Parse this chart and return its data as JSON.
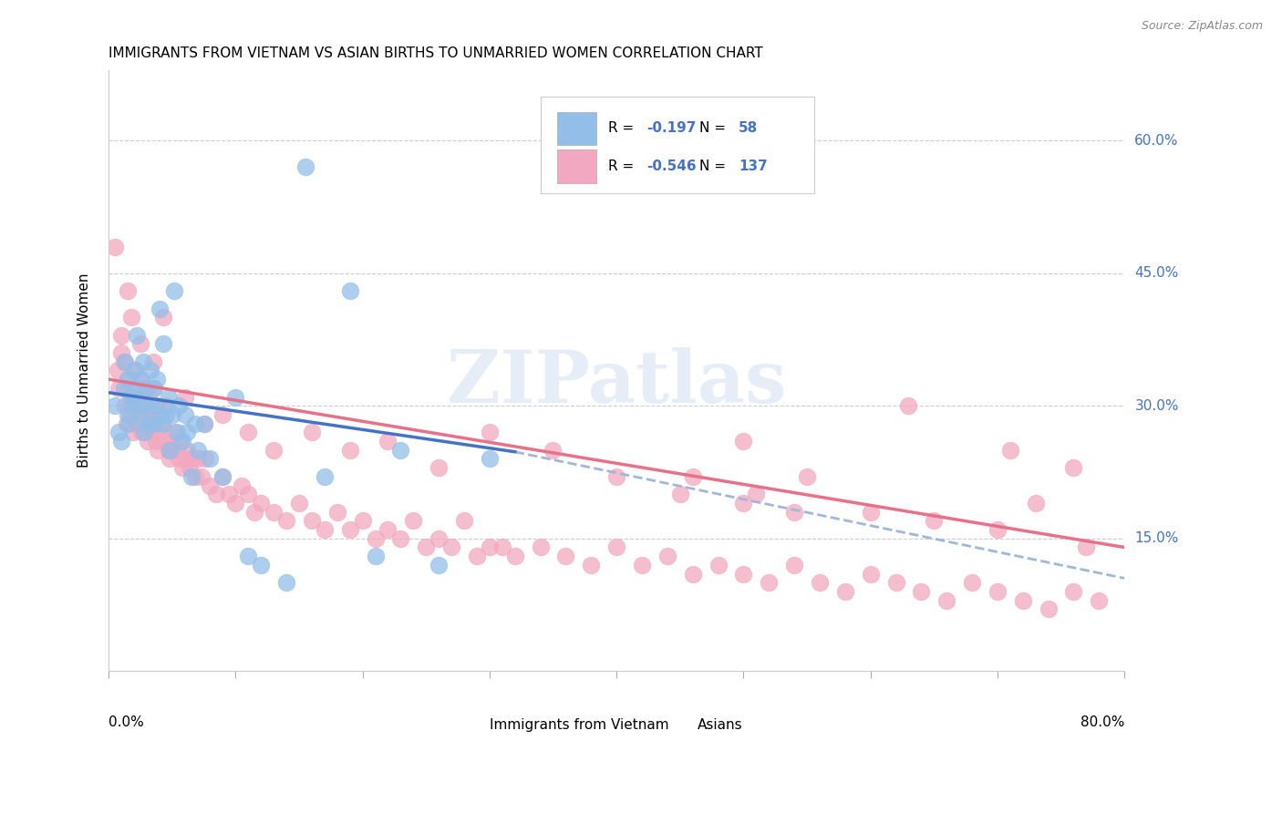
{
  "title": "IMMIGRANTS FROM VIETNAM VS ASIAN BIRTHS TO UNMARRIED WOMEN CORRELATION CHART",
  "source": "Source: ZipAtlas.com",
  "ylabel": "Births to Unmarried Women",
  "ytick_vals": [
    0.15,
    0.3,
    0.45,
    0.6
  ],
  "ytick_labels": [
    "15.0%",
    "30.0%",
    "45.0%",
    "60.0%"
  ],
  "xlim": [
    0.0,
    0.8
  ],
  "ylim": [
    0.0,
    0.68
  ],
  "legend_label1": "Immigrants from Vietnam",
  "legend_label2": "Asians",
  "legend_R1_val": "-0.197",
  "legend_N1_val": "58",
  "legend_R2_val": "-0.546",
  "legend_N2_val": "137",
  "color_blue": "#92BEE8",
  "color_pink": "#F2A8C0",
  "color_blue_line": "#4472C4",
  "color_pink_line": "#E8718A",
  "color_dash": "#A0B8D8",
  "watermark_text": "ZIPatlas",
  "background_color": "#FFFFFF",
  "blue_scatter_x": [
    0.005,
    0.008,
    0.01,
    0.012,
    0.013,
    0.015,
    0.015,
    0.016,
    0.017,
    0.018,
    0.02,
    0.02,
    0.022,
    0.023,
    0.025,
    0.025,
    0.026,
    0.027,
    0.028,
    0.03,
    0.03,
    0.032,
    0.033,
    0.035,
    0.036,
    0.037,
    0.038,
    0.04,
    0.04,
    0.042,
    0.043,
    0.045,
    0.047,
    0.048,
    0.05,
    0.052,
    0.054,
    0.055,
    0.058,
    0.06,
    0.062,
    0.065,
    0.068,
    0.07,
    0.075,
    0.08,
    0.09,
    0.1,
    0.11,
    0.12,
    0.14,
    0.155,
    0.17,
    0.19,
    0.21,
    0.23,
    0.26,
    0.3
  ],
  "blue_scatter_y": [
    0.3,
    0.27,
    0.26,
    0.32,
    0.35,
    0.29,
    0.33,
    0.28,
    0.31,
    0.3,
    0.31,
    0.34,
    0.38,
    0.32,
    0.29,
    0.33,
    0.3,
    0.35,
    0.27,
    0.28,
    0.32,
    0.3,
    0.34,
    0.28,
    0.32,
    0.3,
    0.33,
    0.41,
    0.29,
    0.28,
    0.37,
    0.29,
    0.31,
    0.25,
    0.29,
    0.43,
    0.27,
    0.3,
    0.26,
    0.29,
    0.27,
    0.22,
    0.28,
    0.25,
    0.28,
    0.24,
    0.22,
    0.31,
    0.13,
    0.12,
    0.1,
    0.57,
    0.22,
    0.43,
    0.13,
    0.25,
    0.12,
    0.24
  ],
  "pink_scatter_x": [
    0.005,
    0.007,
    0.008,
    0.01,
    0.012,
    0.013,
    0.014,
    0.015,
    0.016,
    0.017,
    0.018,
    0.019,
    0.02,
    0.021,
    0.022,
    0.023,
    0.024,
    0.025,
    0.026,
    0.027,
    0.028,
    0.029,
    0.03,
    0.031,
    0.032,
    0.033,
    0.034,
    0.035,
    0.036,
    0.037,
    0.038,
    0.039,
    0.04,
    0.042,
    0.044,
    0.045,
    0.047,
    0.048,
    0.05,
    0.052,
    0.054,
    0.055,
    0.056,
    0.058,
    0.06,
    0.062,
    0.064,
    0.066,
    0.068,
    0.07,
    0.073,
    0.076,
    0.08,
    0.085,
    0.09,
    0.095,
    0.1,
    0.105,
    0.11,
    0.115,
    0.12,
    0.13,
    0.14,
    0.15,
    0.16,
    0.17,
    0.18,
    0.19,
    0.2,
    0.21,
    0.22,
    0.23,
    0.24,
    0.25,
    0.26,
    0.27,
    0.28,
    0.29,
    0.3,
    0.31,
    0.32,
    0.34,
    0.36,
    0.38,
    0.4,
    0.42,
    0.44,
    0.46,
    0.48,
    0.5,
    0.52,
    0.54,
    0.56,
    0.58,
    0.6,
    0.62,
    0.64,
    0.66,
    0.68,
    0.7,
    0.72,
    0.74,
    0.76,
    0.78,
    0.01,
    0.015,
    0.018,
    0.025,
    0.035,
    0.043,
    0.06,
    0.075,
    0.09,
    0.11,
    0.13,
    0.16,
    0.19,
    0.22,
    0.26,
    0.3,
    0.35,
    0.4,
    0.45,
    0.5,
    0.55,
    0.6,
    0.65,
    0.7,
    0.73,
    0.77,
    0.5,
    0.63,
    0.71,
    0.76,
    0.46,
    0.51,
    0.54
  ],
  "pink_scatter_y": [
    0.48,
    0.34,
    0.32,
    0.36,
    0.35,
    0.3,
    0.28,
    0.33,
    0.32,
    0.29,
    0.31,
    0.27,
    0.3,
    0.34,
    0.28,
    0.31,
    0.29,
    0.33,
    0.27,
    0.3,
    0.32,
    0.28,
    0.29,
    0.26,
    0.28,
    0.27,
    0.29,
    0.32,
    0.28,
    0.26,
    0.3,
    0.25,
    0.27,
    0.28,
    0.26,
    0.3,
    0.25,
    0.24,
    0.26,
    0.27,
    0.25,
    0.24,
    0.26,
    0.23,
    0.24,
    0.25,
    0.23,
    0.24,
    0.22,
    0.24,
    0.22,
    0.24,
    0.21,
    0.2,
    0.22,
    0.2,
    0.19,
    0.21,
    0.2,
    0.18,
    0.19,
    0.18,
    0.17,
    0.19,
    0.17,
    0.16,
    0.18,
    0.16,
    0.17,
    0.15,
    0.16,
    0.15,
    0.17,
    0.14,
    0.15,
    0.14,
    0.17,
    0.13,
    0.14,
    0.14,
    0.13,
    0.14,
    0.13,
    0.12,
    0.14,
    0.12,
    0.13,
    0.11,
    0.12,
    0.11,
    0.1,
    0.12,
    0.1,
    0.09,
    0.11,
    0.1,
    0.09,
    0.08,
    0.1,
    0.09,
    0.08,
    0.07,
    0.09,
    0.08,
    0.38,
    0.43,
    0.4,
    0.37,
    0.35,
    0.4,
    0.31,
    0.28,
    0.29,
    0.27,
    0.25,
    0.27,
    0.25,
    0.26,
    0.23,
    0.27,
    0.25,
    0.22,
    0.2,
    0.19,
    0.22,
    0.18,
    0.17,
    0.16,
    0.19,
    0.14,
    0.26,
    0.3,
    0.25,
    0.23,
    0.22,
    0.2,
    0.18
  ],
  "blue_line_x": [
    0.0,
    0.32
  ],
  "blue_line_y": [
    0.315,
    0.248
  ],
  "pink_line_x": [
    0.0,
    0.8
  ],
  "pink_line_y": [
    0.33,
    0.14
  ],
  "dash_line_x": [
    0.32,
    0.8
  ],
  "dash_line_y": [
    0.248,
    0.105
  ]
}
